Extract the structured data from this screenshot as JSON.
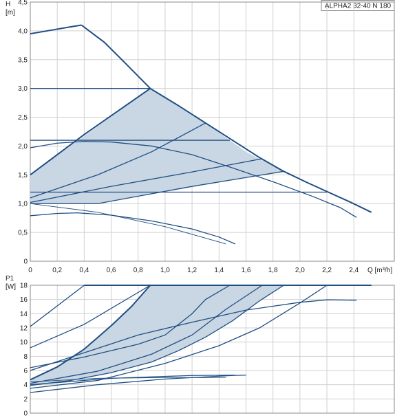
{
  "product_label": "ALPHA2 32-40 N 180",
  "chart_data": [
    {
      "type": "line",
      "id": "head",
      "ylabel": "H",
      "yunit": "[m]",
      "xlabel": "Q [m³/h]",
      "xlim": [
        0,
        2.7
      ],
      "ylim": [
        0,
        4.5
      ],
      "x_ticks": [
        "0",
        "0,2",
        "0,4",
        "0,6",
        "0,8",
        "1,0",
        "1,2",
        "1,4",
        "1,6",
        "1,8",
        "2,0",
        "2,2",
        "2,4"
      ],
      "y_ticks": [
        "0",
        "0,5",
        "1,0",
        "1,5",
        "2,0",
        "2,5",
        "3,0",
        "3,5",
        "4,0",
        "4,5"
      ],
      "grid": true,
      "band": {
        "upper": [
          [
            0,
            1.5
          ],
          [
            0.89,
            3.0
          ],
          [
            1.3,
            2.4
          ],
          [
            1.48,
            2.1
          ],
          [
            1.6,
            1.9
          ],
          [
            1.88,
            1.56
          ]
        ],
        "lower": [
          [
            1.88,
            1.56
          ],
          [
            0.5,
            1.0
          ],
          [
            0,
            1.0
          ]
        ]
      },
      "series": [
        {
          "style": "thick",
          "points": [
            [
              0,
              3.95
            ],
            [
              0.15,
              4.01
            ],
            [
              0.3,
              4.07
            ],
            [
              0.38,
              4.1
            ]
          ]
        },
        {
          "style": "thick",
          "points": [
            [
              0.38,
              4.1
            ],
            [
              0.55,
              3.8
            ],
            [
              0.7,
              3.45
            ],
            [
              0.89,
              3.0
            ],
            [
              1.1,
              2.7
            ],
            [
              1.3,
              2.4
            ],
            [
              1.5,
              2.1
            ],
            [
              1.7,
              1.8
            ],
            [
              1.88,
              1.56
            ],
            [
              2.05,
              1.37
            ],
            [
              2.2,
              1.21
            ],
            [
              2.37,
              1.03
            ],
            [
              2.53,
              0.85
            ]
          ]
        },
        {
          "style": "thick",
          "points": [
            [
              0,
              1.5
            ],
            [
              0.4,
              2.2
            ],
            [
              0.89,
              3.0
            ]
          ]
        },
        {
          "style": "normal",
          "points": [
            [
              0,
              3.0
            ],
            [
              0.89,
              3.0
            ]
          ]
        },
        {
          "style": "normal",
          "points": [
            [
              0,
              1.1
            ],
            [
              0.5,
              1.5
            ],
            [
              0.9,
              1.9
            ],
            [
              1.3,
              2.4
            ]
          ]
        },
        {
          "style": "normal",
          "points": [
            [
              0,
              1.02
            ],
            [
              0.6,
              1.3
            ],
            [
              1.2,
              1.55
            ],
            [
              1.72,
              1.78
            ]
          ]
        },
        {
          "style": "normal",
          "points": [
            [
              0,
              1.0
            ],
            [
              0.5,
              1.0
            ],
            [
              1.2,
              1.3
            ],
            [
              1.88,
              1.56
            ]
          ]
        },
        {
          "style": "normal",
          "points": [
            [
              0,
              2.1
            ],
            [
              1.48,
              2.1
            ]
          ]
        },
        {
          "style": "normal",
          "points": [
            [
              0,
              1.2
            ],
            [
              2.2,
              1.2
            ]
          ]
        },
        {
          "style": "normal",
          "points": [
            [
              0,
              1.97
            ],
            [
              0.2,
              2.05
            ],
            [
              0.4,
              2.08
            ],
            [
              0.6,
              2.07
            ],
            [
              0.9,
              2.0
            ],
            [
              1.2,
              1.85
            ],
            [
              1.5,
              1.62
            ],
            [
              1.8,
              1.38
            ],
            [
              2.1,
              1.12
            ],
            [
              2.3,
              0.93
            ],
            [
              2.42,
              0.76
            ]
          ]
        },
        {
          "style": "normal",
          "points": [
            [
              0,
              0.79
            ],
            [
              0.2,
              0.83
            ],
            [
              0.35,
              0.84
            ],
            [
              0.6,
              0.8
            ],
            [
              0.9,
              0.7
            ],
            [
              1.2,
              0.56
            ],
            [
              1.4,
              0.42
            ],
            [
              1.52,
              0.3
            ]
          ]
        },
        {
          "style": "thin",
          "points": [
            [
              0,
              1.0
            ],
            [
              0.5,
              0.85
            ],
            [
              1.0,
              0.6
            ],
            [
              1.45,
              0.3
            ]
          ]
        }
      ]
    },
    {
      "type": "line",
      "id": "power",
      "ylabel": "P1",
      "yunit": "[W]",
      "xlim": [
        0,
        2.7
      ],
      "ylim": [
        0,
        18
      ],
      "y_ticks": [
        "0",
        "2",
        "4",
        "6",
        "8",
        "10",
        "12",
        "14",
        "16",
        "18"
      ],
      "grid": true,
      "band": {
        "upper": [
          [
            0,
            4.7
          ],
          [
            0.2,
            6.5
          ],
          [
            0.4,
            9.0
          ],
          [
            0.6,
            12.3
          ],
          [
            0.75,
            15.0
          ],
          [
            0.89,
            18.0
          ],
          [
            1.88,
            18.0
          ]
        ],
        "lower": [
          [
            1.88,
            18.0
          ],
          [
            1.7,
            15.8
          ],
          [
            1.5,
            13.0
          ],
          [
            1.3,
            10.7
          ],
          [
            1.1,
            8.8
          ],
          [
            0.9,
            7.2
          ],
          [
            0.6,
            5.7
          ],
          [
            0.3,
            4.6
          ],
          [
            0,
            3.9
          ]
        ]
      },
      "series": [
        {
          "style": "thick",
          "points": [
            [
              0.4,
              18
            ],
            [
              2.53,
              18
            ]
          ]
        },
        {
          "style": "thick",
          "points": [
            [
              0,
              4.7
            ],
            [
              0.2,
              6.5
            ],
            [
              0.4,
              9.0
            ],
            [
              0.6,
              12.3
            ],
            [
              0.75,
              15.0
            ],
            [
              0.89,
              18.0
            ]
          ]
        },
        {
          "style": "normal",
          "points": [
            [
              0,
              12.2
            ],
            [
              0.2,
              15.1
            ],
            [
              0.4,
              18
            ]
          ]
        },
        {
          "style": "normal",
          "points": [
            [
              0,
              9.2
            ],
            [
              0.4,
              12.5
            ],
            [
              0.89,
              18
            ]
          ]
        },
        {
          "style": "normal",
          "points": [
            [
              0,
              6.4
            ],
            [
              0.4,
              7.9
            ],
            [
              0.8,
              9.7
            ],
            [
              1.0,
              11.0
            ],
            [
              1.2,
              14.0
            ],
            [
              1.3,
              16.0
            ],
            [
              1.48,
              18
            ]
          ]
        },
        {
          "style": "normal",
          "points": [
            [
              0,
              6.0
            ],
            [
              0.4,
              8.5
            ],
            [
              0.8,
              11.0
            ],
            [
              1.2,
              12.8
            ],
            [
              1.6,
              14.5
            ],
            [
              2.0,
              15.6
            ],
            [
              2.2,
              15.95
            ],
            [
              2.42,
              15.9
            ]
          ]
        },
        {
          "style": "normal",
          "points": [
            [
              0,
              4.2
            ],
            [
              0.5,
              5.9
            ],
            [
              0.9,
              8.3
            ],
            [
              1.2,
              11.0
            ],
            [
              1.45,
              14.6
            ],
            [
              1.72,
              18
            ]
          ]
        },
        {
          "style": "normal",
          "points": [
            [
              0,
              3.9
            ],
            [
              0.3,
              4.6
            ],
            [
              0.6,
              5.7
            ],
            [
              0.9,
              7.2
            ],
            [
              1.1,
              8.8
            ],
            [
              1.3,
              10.7
            ],
            [
              1.5,
              13.0
            ],
            [
              1.7,
              15.8
            ],
            [
              1.88,
              18
            ]
          ]
        },
        {
          "style": "normal",
          "points": [
            [
              0,
              3.5
            ],
            [
              0.5,
              4.6
            ],
            [
              1.0,
              7.0
            ],
            [
              1.4,
              9.5
            ],
            [
              1.7,
              12.0
            ],
            [
              2.0,
              15.5
            ],
            [
              2.2,
              18
            ]
          ]
        },
        {
          "style": "normal",
          "points": [
            [
              0,
              2.9
            ],
            [
              0.5,
              4.0
            ],
            [
              1.0,
              4.8
            ],
            [
              1.5,
              5.3
            ],
            [
              1.6,
              5.35
            ]
          ]
        },
        {
          "style": "normal",
          "points": [
            [
              0,
              4.0
            ],
            [
              0.6,
              4.9
            ],
            [
              1.2,
              5.3
            ],
            [
              1.52,
              5.35
            ]
          ]
        },
        {
          "style": "thin",
          "points": [
            [
              0,
              4.4
            ],
            [
              0.5,
              4.9
            ],
            [
              1.0,
              5.0
            ],
            [
              1.45,
              5.0
            ]
          ]
        }
      ]
    }
  ]
}
